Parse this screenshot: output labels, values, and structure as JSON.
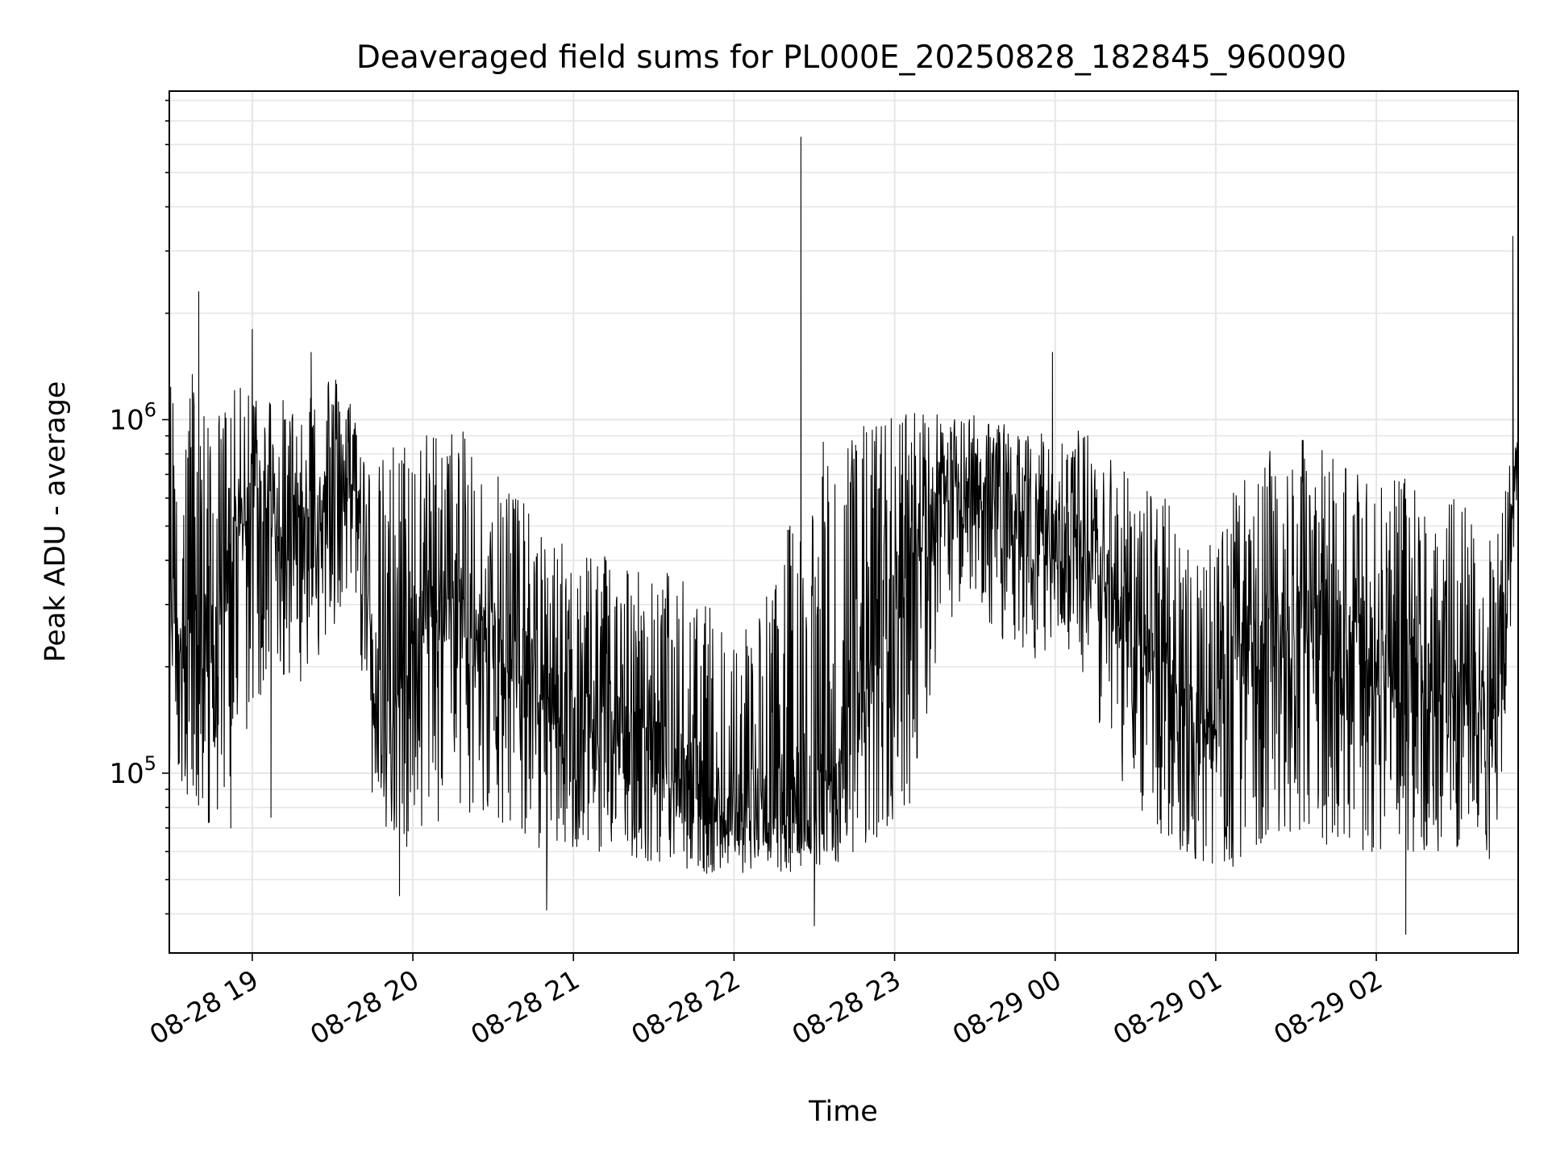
{
  "chart_data": {
    "type": "line",
    "title": "Deaveraged field sums for PL000E_20250828_182845_960090",
    "xlabel": "Time",
    "ylabel": "Peak ADU - average",
    "yscale": "log",
    "ylim": [
      31000,
      8500000
    ],
    "xlim": [
      "2025-08-28 18:29",
      "2025-08-29 02:53"
    ],
    "x_ticks": [
      {
        "value": "2025-08-28 19:00",
        "label": "08-28 19"
      },
      {
        "value": "2025-08-28 20:00",
        "label": "08-28 20"
      },
      {
        "value": "2025-08-28 21:00",
        "label": "08-28 21"
      },
      {
        "value": "2025-08-28 22:00",
        "label": "08-28 22"
      },
      {
        "value": "2025-08-28 23:00",
        "label": "08-28 23"
      },
      {
        "value": "2025-08-29 00:00",
        "label": "08-29 00"
      },
      {
        "value": "2025-08-29 01:00",
        "label": "08-29 01"
      },
      {
        "value": "2025-08-29 02:00",
        "label": "08-29 02"
      }
    ],
    "y_ticks": [
      {
        "value": 100000,
        "label": "10",
        "exponent": "5"
      },
      {
        "value": 1000000,
        "label": "10",
        "exponent": "6"
      }
    ],
    "grid": true,
    "line_color": "#000000",
    "series": [
      {
        "x": [
          "2025-08-28 18:29",
          "2025-08-28 18:37",
          "2025-08-28 18:45",
          "2025-08-28 18:52",
          "2025-08-28 19:00",
          "2025-08-28 19:08",
          "2025-08-28 19:15",
          "2025-08-28 19:23",
          "2025-08-28 19:30",
          "2025-08-28 19:38",
          "2025-08-28 19:45",
          "2025-08-28 19:53",
          "2025-08-28 20:00",
          "2025-08-28 20:08",
          "2025-08-28 20:15",
          "2025-08-28 20:23",
          "2025-08-28 20:30",
          "2025-08-28 20:38",
          "2025-08-28 20:45",
          "2025-08-28 20:53",
          "2025-08-28 21:00",
          "2025-08-28 21:08",
          "2025-08-28 21:15",
          "2025-08-28 21:23",
          "2025-08-28 21:30",
          "2025-08-28 21:38",
          "2025-08-28 21:45",
          "2025-08-28 21:53",
          "2025-08-28 22:00",
          "2025-08-28 22:08",
          "2025-08-28 22:15",
          "2025-08-28 22:23",
          "2025-08-28 22:30",
          "2025-08-28 22:38",
          "2025-08-28 22:45",
          "2025-08-28 22:53",
          "2025-08-28 23:00",
          "2025-08-28 23:08",
          "2025-08-28 23:15",
          "2025-08-28 23:23",
          "2025-08-28 23:30",
          "2025-08-28 23:38",
          "2025-08-28 23:45",
          "2025-08-28 23:53",
          "2025-08-29 00:00",
          "2025-08-29 00:08",
          "2025-08-29 00:15",
          "2025-08-29 00:23",
          "2025-08-29 00:30",
          "2025-08-29 00:38",
          "2025-08-29 00:45",
          "2025-08-29 00:53",
          "2025-08-29 01:00",
          "2025-08-29 01:08",
          "2025-08-29 01:15",
          "2025-08-29 01:23",
          "2025-08-29 01:30",
          "2025-08-29 01:38",
          "2025-08-29 01:45",
          "2025-08-29 01:53",
          "2025-08-29 02:00",
          "2025-08-29 02:08",
          "2025-08-29 02:15",
          "2025-08-29 02:23",
          "2025-08-29 02:30",
          "2025-08-29 02:38",
          "2025-08-29 02:45",
          "2025-08-29 02:53"
        ],
        "y": [
          300000,
          250000,
          200000,
          400000,
          600000,
          550000,
          450000,
          500000,
          650000,
          700000,
          200000,
          150000,
          250000,
          300000,
          280000,
          260000,
          240000,
          200000,
          180000,
          150000,
          130000,
          140000,
          135000,
          120000,
          110000,
          100000,
          95000,
          85000,
          80000,
          80000,
          85000,
          90000,
          80000,
          110000,
          140000,
          200000,
          300000,
          450000,
          550000,
          600000,
          650000,
          600000,
          500000,
          480000,
          450000,
          400000,
          380000,
          300000,
          250000,
          200000,
          160000,
          140000,
          130000,
          200000,
          250000,
          280000,
          300000,
          260000,
          240000,
          220000,
          220000,
          200000,
          180000,
          170000,
          160000,
          150000,
          130000,
          800000
        ],
        "band_high": [
          1400000,
          1500000,
          1000000,
          1200000,
          1300000,
          1200000,
          1100000,
          1400000,
          1400000,
          1100000,
          700000,
          900000,
          900000,
          950000,
          950000,
          900000,
          800000,
          700000,
          500000,
          450000,
          450000,
          450000,
          450000,
          400000,
          350000,
          400000,
          300000,
          300000,
          250000,
          300000,
          350000,
          600000,
          850000,
          900000,
          950000,
          1000000,
          1050000,
          1100000,
          1050000,
          1000000,
          1050000,
          1000000,
          950000,
          900000,
          950000,
          950000,
          900000,
          800000,
          700000,
          650000,
          550000,
          500000,
          500000,
          650000,
          750000,
          850000,
          900000,
          850000,
          800000,
          750000,
          750000,
          700000,
          650000,
          650000,
          600000,
          550000,
          500000,
          1000000
        ],
        "band_low": [
          110000,
          80000,
          70000,
          90000,
          150000,
          180000,
          170000,
          200000,
          250000,
          300000,
          80000,
          60000,
          60000,
          70000,
          75000,
          75000,
          70000,
          65000,
          60000,
          60000,
          60000,
          60000,
          60000,
          58000,
          55000,
          55000,
          52000,
          52000,
          52000,
          52000,
          52000,
          52000,
          55000,
          55000,
          58000,
          60000,
          65000,
          90000,
          200000,
          300000,
          300000,
          250000,
          200000,
          200000,
          250000,
          200000,
          150000,
          100000,
          80000,
          65000,
          60000,
          55000,
          52000,
          55000,
          60000,
          65000,
          70000,
          65000,
          60000,
          60000,
          60000,
          60000,
          58000,
          60000,
          60000,
          60000,
          55000,
          600000
        ],
        "spikes": [
          {
            "x": "2025-08-28 18:40",
            "y": 2300000
          },
          {
            "x": "2025-08-28 18:52",
            "y": 70000
          },
          {
            "x": "2025-08-28 19:00",
            "y": 1800000
          },
          {
            "x": "2025-08-28 19:07",
            "y": 75000
          },
          {
            "x": "2025-08-28 19:22",
            "y": 1550000
          },
          {
            "x": "2025-08-28 19:55",
            "y": 45000
          },
          {
            "x": "2025-08-28 20:50",
            "y": 41000
          },
          {
            "x": "2025-08-28 22:25",
            "y": 6300000
          },
          {
            "x": "2025-08-28 22:30",
            "y": 37000
          },
          {
            "x": "2025-08-28 23:59",
            "y": 1550000
          },
          {
            "x": "2025-08-29 02:11",
            "y": 35000
          },
          {
            "x": "2025-08-29 02:51",
            "y": 3300000
          }
        ]
      }
    ]
  }
}
